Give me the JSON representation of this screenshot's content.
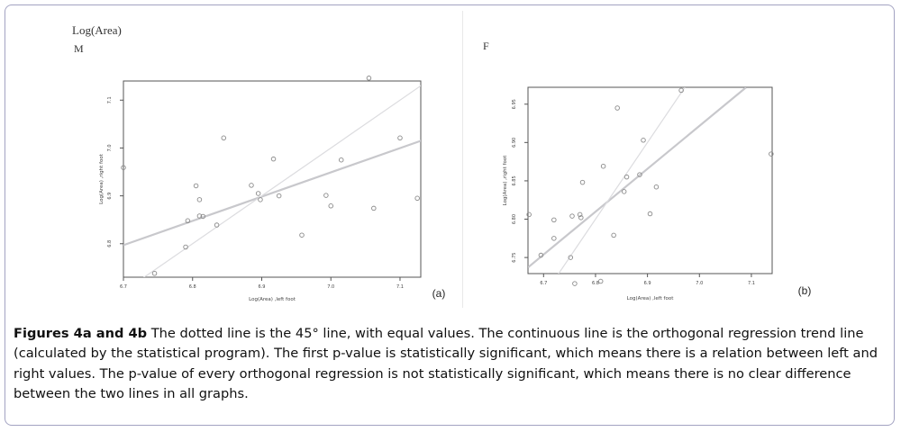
{
  "figure": {
    "top_label": "Log(Area)",
    "caption_bold": "Figures 4a and 4b",
    "caption_text": " The dotted line is the 45° line, with equal values. The continuous line is the orthogonal regression trend line (calculated by the statistical program). The first p-value is statistically significant, which means there is a relation between left and right values. The p-value of every orthogonal regression is not statistically significant, which means there is no clear difference between the two lines in all graphs."
  },
  "chart_data": [
    {
      "type": "scatter",
      "panel_title": "M",
      "panel_tag": "(a)",
      "xlabel": "Log(Area) ,left foot",
      "ylabel": "Log(Area) ,right foot",
      "xlim": [
        6.7,
        7.13
      ],
      "ylim": [
        6.73,
        7.14
      ],
      "xticks": [
        {
          "value": 6.7,
          "label": "6.7"
        },
        {
          "value": 6.8,
          "label": "6.8"
        },
        {
          "value": 6.9,
          "label": "6.9"
        },
        {
          "value": 7.0,
          "label": "7.0"
        },
        {
          "value": 7.1,
          "label": "7.1"
        }
      ],
      "yticks": [
        {
          "value": 6.8,
          "label": "6.8"
        },
        {
          "value": 6.9,
          "label": "6.9"
        },
        {
          "value": 7.0,
          "label": "7.0"
        },
        {
          "value": 7.1,
          "label": "7.1"
        }
      ],
      "points": [
        {
          "x": 6.7,
          "y": 6.959
        },
        {
          "x": 6.745,
          "y": 6.738
        },
        {
          "x": 6.79,
          "y": 6.793
        },
        {
          "x": 6.793,
          "y": 6.848
        },
        {
          "x": 6.805,
          "y": 6.921
        },
        {
          "x": 6.81,
          "y": 6.892
        },
        {
          "x": 6.81,
          "y": 6.858
        },
        {
          "x": 6.815,
          "y": 6.857
        },
        {
          "x": 6.835,
          "y": 6.839
        },
        {
          "x": 6.845,
          "y": 7.021
        },
        {
          "x": 6.885,
          "y": 6.922
        },
        {
          "x": 6.895,
          "y": 6.905
        },
        {
          "x": 6.898,
          "y": 6.892
        },
        {
          "x": 6.917,
          "y": 6.977
        },
        {
          "x": 6.925,
          "y": 6.9
        },
        {
          "x": 6.958,
          "y": 6.818
        },
        {
          "x": 6.993,
          "y": 6.901
        },
        {
          "x": 7.0,
          "y": 6.879
        },
        {
          "x": 7.015,
          "y": 6.975
        },
        {
          "x": 7.055,
          "y": 7.146
        },
        {
          "x": 7.062,
          "y": 6.874
        },
        {
          "x": 7.1,
          "y": 7.021
        },
        {
          "x": 7.125,
          "y": 6.895
        }
      ],
      "lines": [
        {
          "name": "",
          "style": "regression",
          "x": [
            6.7,
            7.14
          ],
          "y": [
            6.797,
            7.02
          ]
        },
        {
          "name": "",
          "style": "45-degree",
          "x": [
            6.72,
            7.14
          ],
          "y": [
            6.72,
            7.14
          ]
        }
      ]
    },
    {
      "type": "scatter",
      "panel_title": "F",
      "panel_tag": "(b)",
      "xlabel": "Log(Area) ,left foot",
      "ylabel": "Log(Area) ,right foot",
      "xlim": [
        6.67,
        7.14
      ],
      "ylim": [
        6.729,
        6.972
      ],
      "xticks": [
        {
          "value": 6.7,
          "label": "6.7"
        },
        {
          "value": 6.8,
          "label": "6.8"
        },
        {
          "value": 6.9,
          "label": "6.9"
        },
        {
          "value": 7.0,
          "label": "7.0"
        },
        {
          "value": 7.1,
          "label": "7.1"
        }
      ],
      "yticks": [
        {
          "value": 6.75,
          "label": "6.75"
        },
        {
          "value": 6.8,
          "label": "6.80"
        },
        {
          "value": 6.85,
          "label": "6.85"
        },
        {
          "value": 6.9,
          "label": "6.90"
        },
        {
          "value": 6.95,
          "label": "6.95"
        }
      ],
      "points": [
        {
          "x": 6.672,
          "y": 6.806
        },
        {
          "x": 6.695,
          "y": 6.753
        },
        {
          "x": 6.72,
          "y": 6.799
        },
        {
          "x": 6.72,
          "y": 6.775
        },
        {
          "x": 6.752,
          "y": 6.75
        },
        {
          "x": 6.755,
          "y": 6.804
        },
        {
          "x": 6.77,
          "y": 6.806
        },
        {
          "x": 6.772,
          "y": 6.802
        },
        {
          "x": 6.775,
          "y": 6.848
        },
        {
          "x": 6.76,
          "y": 6.716
        },
        {
          "x": 6.81,
          "y": 6.719
        },
        {
          "x": 6.815,
          "y": 6.869
        },
        {
          "x": 6.835,
          "y": 6.779
        },
        {
          "x": 6.842,
          "y": 6.945
        },
        {
          "x": 6.855,
          "y": 6.836
        },
        {
          "x": 6.86,
          "y": 6.855
        },
        {
          "x": 6.885,
          "y": 6.858
        },
        {
          "x": 6.892,
          "y": 6.903
        },
        {
          "x": 6.905,
          "y": 6.807
        },
        {
          "x": 6.917,
          "y": 6.842
        },
        {
          "x": 6.965,
          "y": 6.968
        },
        {
          "x": 7.138,
          "y": 6.885
        }
      ],
      "lines": [
        {
          "name": "",
          "style": "regression",
          "x": [
            6.67,
            7.09
          ],
          "y": [
            6.737,
            6.972
          ]
        },
        {
          "name": "",
          "style": "45-degree",
          "x": [
            6.706,
            6.972
          ],
          "y": [
            6.706,
            6.972
          ]
        }
      ]
    }
  ]
}
